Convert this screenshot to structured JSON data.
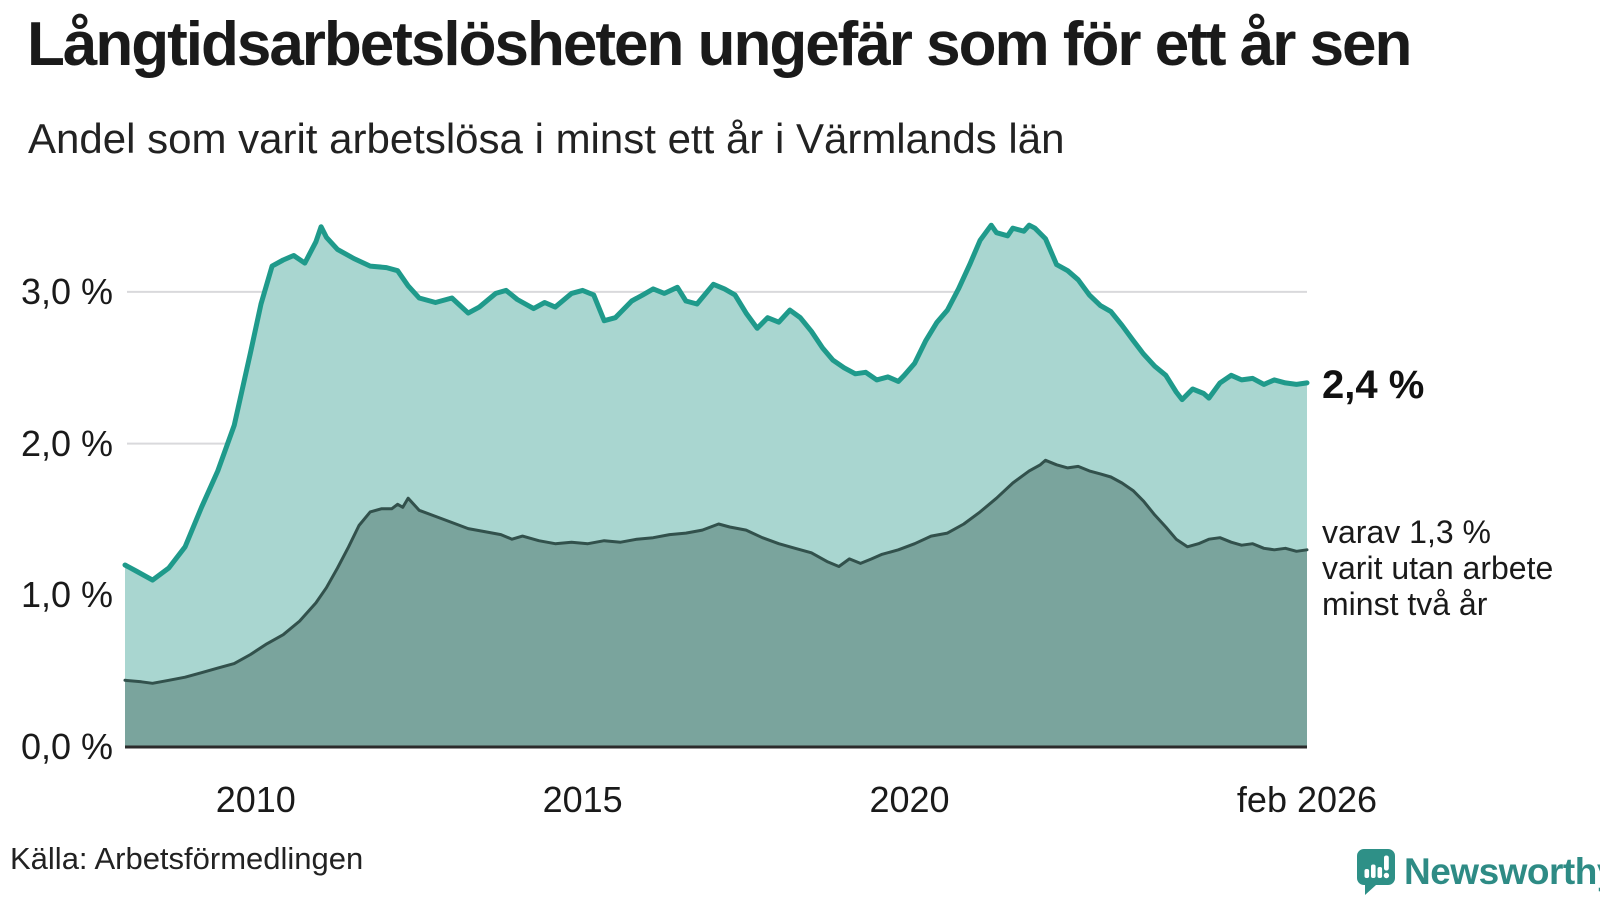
{
  "header": {
    "title": "Långtidsarbetslösheten ungefär som för ett år sen",
    "subtitle": "Andel som varit arbetslösa i minst ett år i Värmlands län"
  },
  "colors": {
    "primary_line": "#1f9a8b",
    "primary_fill": "#a9d6d0",
    "secondary_line": "#32514c",
    "secondary_fill": "#7aa49d",
    "grid": "#d9d9dc",
    "baseline": "#2b2b2b",
    "brand_teal": "#2e8b85"
  },
  "chart_data": {
    "type": "area",
    "title": "Långtidsarbetslösheten ungefär som för ett år sen",
    "subtitle": "Andel som varit arbetslösa i minst ett år i Värmlands län",
    "grid": true,
    "ylim": [
      0,
      3.6
    ],
    "x_domain": [
      2008.0,
      2026.08
    ],
    "y_ticks": [
      {
        "value": 3.0,
        "label": "3,0 %"
      },
      {
        "value": 2.0,
        "label": "2,0 %"
      },
      {
        "value": 1.0,
        "label": "1,0 %"
      },
      {
        "value": 0.0,
        "label": "0,0 %"
      }
    ],
    "x_ticks": [
      {
        "value": 2010,
        "label": "2010"
      },
      {
        "value": 2015,
        "label": "2015"
      },
      {
        "value": 2020,
        "label": "2020"
      },
      {
        "value": 2026.08,
        "label": "feb 2026"
      }
    ],
    "series": [
      {
        "name": "Andel som varit arbetslösa i minst ett år",
        "end_label": "2,4 %",
        "end_value": 2.4,
        "width": 5,
        "points": [
          [
            2008.0,
            1.2
          ],
          [
            2008.17,
            1.16
          ],
          [
            2008.42,
            1.1
          ],
          [
            2008.67,
            1.18
          ],
          [
            2008.92,
            1.32
          ],
          [
            2009.17,
            1.58
          ],
          [
            2009.42,
            1.82
          ],
          [
            2009.67,
            2.12
          ],
          [
            2009.92,
            2.6
          ],
          [
            2010.08,
            2.92
          ],
          [
            2010.25,
            3.17
          ],
          [
            2010.42,
            3.21
          ],
          [
            2010.58,
            3.24
          ],
          [
            2010.75,
            3.19
          ],
          [
            2010.92,
            3.33
          ],
          [
            2011.0,
            3.43
          ],
          [
            2011.08,
            3.36
          ],
          [
            2011.25,
            3.28
          ],
          [
            2011.5,
            3.22
          ],
          [
            2011.75,
            3.17
          ],
          [
            2012.0,
            3.16
          ],
          [
            2012.17,
            3.14
          ],
          [
            2012.33,
            3.04
          ],
          [
            2012.5,
            2.96
          ],
          [
            2012.75,
            2.93
          ],
          [
            2013.0,
            2.96
          ],
          [
            2013.25,
            2.86
          ],
          [
            2013.42,
            2.9
          ],
          [
            2013.67,
            2.99
          ],
          [
            2013.83,
            3.01
          ],
          [
            2014.0,
            2.95
          ],
          [
            2014.25,
            2.89
          ],
          [
            2014.42,
            2.93
          ],
          [
            2014.58,
            2.9
          ],
          [
            2014.83,
            2.99
          ],
          [
            2015.0,
            3.01
          ],
          [
            2015.17,
            2.98
          ],
          [
            2015.33,
            2.81
          ],
          [
            2015.5,
            2.83
          ],
          [
            2015.75,
            2.94
          ],
          [
            2015.92,
            2.98
          ],
          [
            2016.08,
            3.02
          ],
          [
            2016.25,
            2.99
          ],
          [
            2016.45,
            3.03
          ],
          [
            2016.58,
            2.94
          ],
          [
            2016.75,
            2.92
          ],
          [
            2017.0,
            3.05
          ],
          [
            2017.17,
            3.02
          ],
          [
            2017.33,
            2.98
          ],
          [
            2017.5,
            2.86
          ],
          [
            2017.67,
            2.76
          ],
          [
            2017.83,
            2.83
          ],
          [
            2018.0,
            2.8
          ],
          [
            2018.17,
            2.88
          ],
          [
            2018.33,
            2.83
          ],
          [
            2018.5,
            2.74
          ],
          [
            2018.67,
            2.63
          ],
          [
            2018.83,
            2.55
          ],
          [
            2019.0,
            2.5
          ],
          [
            2019.17,
            2.46
          ],
          [
            2019.33,
            2.47
          ],
          [
            2019.5,
            2.42
          ],
          [
            2019.67,
            2.44
          ],
          [
            2019.83,
            2.41
          ],
          [
            2019.92,
            2.45
          ],
          [
            2020.08,
            2.53
          ],
          [
            2020.25,
            2.68
          ],
          [
            2020.42,
            2.8
          ],
          [
            2020.58,
            2.88
          ],
          [
            2020.75,
            3.02
          ],
          [
            2020.92,
            3.18
          ],
          [
            2021.08,
            3.34
          ],
          [
            2021.25,
            3.44
          ],
          [
            2021.33,
            3.39
          ],
          [
            2021.5,
            3.37
          ],
          [
            2021.58,
            3.42
          ],
          [
            2021.75,
            3.4
          ],
          [
            2021.83,
            3.44
          ],
          [
            2021.92,
            3.42
          ],
          [
            2022.08,
            3.35
          ],
          [
            2022.25,
            3.18
          ],
          [
            2022.42,
            3.14
          ],
          [
            2022.58,
            3.08
          ],
          [
            2022.75,
            2.98
          ],
          [
            2022.92,
            2.91
          ],
          [
            2023.08,
            2.87
          ],
          [
            2023.25,
            2.78
          ],
          [
            2023.42,
            2.68
          ],
          [
            2023.58,
            2.59
          ],
          [
            2023.75,
            2.51
          ],
          [
            2023.92,
            2.45
          ],
          [
            2024.08,
            2.34
          ],
          [
            2024.17,
            2.29
          ],
          [
            2024.33,
            2.36
          ],
          [
            2024.5,
            2.33
          ],
          [
            2024.58,
            2.3
          ],
          [
            2024.75,
            2.4
          ],
          [
            2024.92,
            2.45
          ],
          [
            2025.08,
            2.42
          ],
          [
            2025.25,
            2.43
          ],
          [
            2025.42,
            2.39
          ],
          [
            2025.58,
            2.42
          ],
          [
            2025.75,
            2.4
          ],
          [
            2025.92,
            2.39
          ],
          [
            2026.08,
            2.4
          ]
        ]
      },
      {
        "name": "varav utan arbete minst två år",
        "end_label": "varav 1,3 %\nvarit utan arbete\nminst två år",
        "end_value": 1.3,
        "width": 3,
        "points": [
          [
            2008.0,
            0.44
          ],
          [
            2008.25,
            0.43
          ],
          [
            2008.42,
            0.42
          ],
          [
            2008.67,
            0.44
          ],
          [
            2008.92,
            0.46
          ],
          [
            2009.17,
            0.49
          ],
          [
            2009.42,
            0.52
          ],
          [
            2009.67,
            0.55
          ],
          [
            2009.92,
            0.61
          ],
          [
            2010.17,
            0.68
          ],
          [
            2010.42,
            0.74
          ],
          [
            2010.67,
            0.83
          ],
          [
            2010.92,
            0.95
          ],
          [
            2011.08,
            1.05
          ],
          [
            2011.25,
            1.18
          ],
          [
            2011.42,
            1.32
          ],
          [
            2011.58,
            1.46
          ],
          [
            2011.75,
            1.55
          ],
          [
            2011.92,
            1.57
          ],
          [
            2012.08,
            1.57
          ],
          [
            2012.17,
            1.6
          ],
          [
            2012.25,
            1.58
          ],
          [
            2012.33,
            1.64
          ],
          [
            2012.5,
            1.56
          ],
          [
            2012.75,
            1.52
          ],
          [
            2013.0,
            1.48
          ],
          [
            2013.25,
            1.44
          ],
          [
            2013.5,
            1.42
          ],
          [
            2013.75,
            1.4
          ],
          [
            2013.92,
            1.37
          ],
          [
            2014.08,
            1.39
          ],
          [
            2014.33,
            1.36
          ],
          [
            2014.58,
            1.34
          ],
          [
            2014.83,
            1.35
          ],
          [
            2015.08,
            1.34
          ],
          [
            2015.33,
            1.36
          ],
          [
            2015.58,
            1.35
          ],
          [
            2015.83,
            1.37
          ],
          [
            2016.08,
            1.38
          ],
          [
            2016.33,
            1.4
          ],
          [
            2016.58,
            1.41
          ],
          [
            2016.83,
            1.43
          ],
          [
            2017.08,
            1.47
          ],
          [
            2017.25,
            1.45
          ],
          [
            2017.5,
            1.43
          ],
          [
            2017.75,
            1.38
          ],
          [
            2018.0,
            1.34
          ],
          [
            2018.25,
            1.31
          ],
          [
            2018.5,
            1.28
          ],
          [
            2018.75,
            1.22
          ],
          [
            2018.92,
            1.19
          ],
          [
            2019.08,
            1.24
          ],
          [
            2019.25,
            1.21
          ],
          [
            2019.42,
            1.24
          ],
          [
            2019.58,
            1.27
          ],
          [
            2019.83,
            1.3
          ],
          [
            2020.08,
            1.34
          ],
          [
            2020.33,
            1.39
          ],
          [
            2020.58,
            1.41
          ],
          [
            2020.83,
            1.47
          ],
          [
            2021.08,
            1.55
          ],
          [
            2021.33,
            1.64
          ],
          [
            2021.58,
            1.74
          ],
          [
            2021.83,
            1.82
          ],
          [
            2022.0,
            1.86
          ],
          [
            2022.08,
            1.89
          ],
          [
            2022.25,
            1.86
          ],
          [
            2022.42,
            1.84
          ],
          [
            2022.58,
            1.85
          ],
          [
            2022.75,
            1.82
          ],
          [
            2022.92,
            1.8
          ],
          [
            2023.08,
            1.78
          ],
          [
            2023.25,
            1.74
          ],
          [
            2023.42,
            1.69
          ],
          [
            2023.58,
            1.62
          ],
          [
            2023.75,
            1.53
          ],
          [
            2023.92,
            1.45
          ],
          [
            2024.08,
            1.37
          ],
          [
            2024.25,
            1.32
          ],
          [
            2024.42,
            1.34
          ],
          [
            2024.58,
            1.37
          ],
          [
            2024.75,
            1.38
          ],
          [
            2024.92,
            1.35
          ],
          [
            2025.08,
            1.33
          ],
          [
            2025.25,
            1.34
          ],
          [
            2025.42,
            1.31
          ],
          [
            2025.58,
            1.3
          ],
          [
            2025.75,
            1.31
          ],
          [
            2025.92,
            1.29
          ],
          [
            2026.08,
            1.3
          ]
        ]
      }
    ]
  },
  "footer": {
    "source": "Källa: Arbetsförmedlingen",
    "brand": "Newsworthy"
  }
}
